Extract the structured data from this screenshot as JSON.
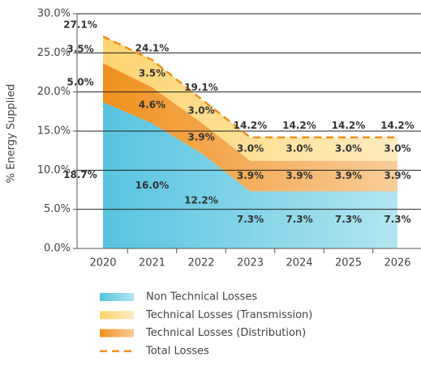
{
  "chart_data": {
    "type": "stacked_area",
    "y_label": "% Energy Supplied",
    "categories": [
      "2020",
      "2021",
      "2022",
      "2023",
      "2024",
      "2025",
      "2026"
    ],
    "series": [
      {
        "name": "Non Technical Losses",
        "kind": "area",
        "color": "#56c4df",
        "values": [
          18.7,
          16.0,
          12.2,
          7.3,
          7.3,
          7.3,
          7.3
        ],
        "value_labels": [
          "18.7%",
          "16.0%",
          "12.2%",
          "7.3%",
          "7.3%",
          "7.3%",
          "7.3%"
        ]
      },
      {
        "name": "Technical Losses (Transmission)",
        "kind": "area",
        "color": "#fdd470",
        "stack_order": 2,
        "values": [
          3.5,
          3.5,
          3.0,
          3.0,
          3.0,
          3.0,
          3.0
        ],
        "value_labels": [
          "3.5%",
          "3.5%",
          "3.0%",
          "3.0%",
          "3.0%",
          "3.0%",
          "3.0%"
        ]
      },
      {
        "name": "Technical Losses (Distribution)",
        "kind": "area",
        "color": "#f0901e",
        "stack_order": 1,
        "values": [
          5.0,
          4.6,
          3.9,
          3.9,
          3.9,
          3.9,
          3.9
        ],
        "value_labels": [
          "5.0%",
          "4.6%",
          "3.9%",
          "3.9%",
          "3.9%",
          "3.9%",
          "3.9%"
        ]
      },
      {
        "name": "Total Losses",
        "kind": "dashed_line",
        "color": "#f0901e",
        "values": [
          27.1,
          24.1,
          19.1,
          14.2,
          14.2,
          14.2,
          14.2
        ],
        "value_labels": [
          "27.1%",
          "24.1%",
          "19.1%",
          "14.2%",
          "14.2%",
          "14.2%",
          "14.2%"
        ]
      }
    ],
    "ylim": [
      0,
      30
    ],
    "yticks": [
      {
        "value": 0,
        "label": "0.0%"
      },
      {
        "value": 5,
        "label": "5.0%"
      },
      {
        "value": 10,
        "label": "10.0%"
      },
      {
        "value": 15,
        "label": "15.0%"
      },
      {
        "value": 20,
        "label": "20.0%"
      },
      {
        "value": 25,
        "label": "25.0%"
      },
      {
        "value": 30,
        "label": "30.0%"
      }
    ],
    "grid": true,
    "legend": "bottom"
  }
}
